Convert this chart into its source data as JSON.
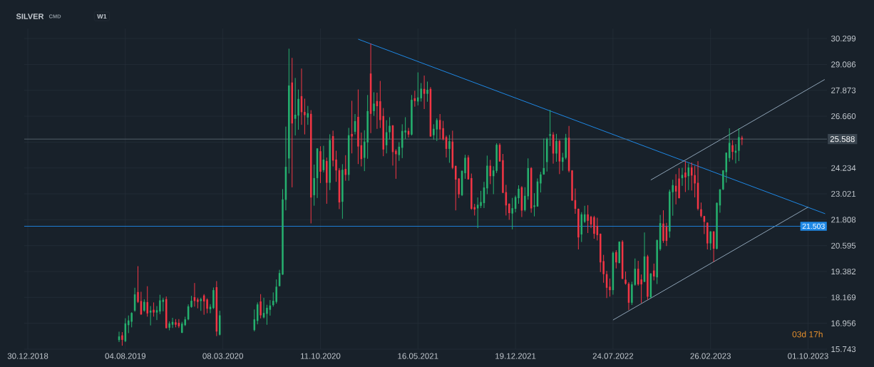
{
  "chart_data": {
    "type": "candlestick",
    "title": "SILVER",
    "annotations": [
      "CMD",
      "W1",
      "03d 17h"
    ],
    "grid": true,
    "colors": [
      "#26b16f",
      "#f23645",
      "#26b16f",
      "#26b16f",
      "#26b16f",
      "#26b16f",
      "#f23645",
      "#f23645",
      "#26b16f",
      "#f23645",
      "#26b16f",
      "#f23645",
      "#26b16f",
      "#26b16f",
      "#26b16f",
      "#f23645",
      "#26b16f",
      "#26b16f",
      "#f23645",
      "#f23645",
      "#26b16f",
      "#26b16f",
      "#26b16f",
      "#26b16f",
      "#f23645",
      "#f23645",
      "#26b16f",
      "#f23645",
      "#f23645",
      "#26b16f",
      "#26b16f",
      "#f23645",
      "#26b16f",
      "#26b16f",
      "#26b16f",
      "#f23645",
      "#26b16f",
      "#26b16f",
      "#26b16f",
      "#26b16f",
      "#26b16f",
      "#26b16f",
      "#26b16f",
      "#26b16f",
      "#26b16f",
      "#f23645",
      "#26b16f",
      "#26b16f",
      "#f23645",
      "#f23645",
      "#26b16f",
      "#f23645",
      "#26b16f",
      "#26b16f",
      "#f23645",
      "#26b16f",
      "#f23645",
      "#26b16f",
      "#f23645",
      "#f23645",
      "#f23645",
      "#26b16f",
      "#f23645",
      "#26b16f",
      "#f23645",
      "#26b16f",
      "#f23645",
      "#f23645",
      "#26b16f",
      "#26b16f",
      "#f23645",
      "#26b16f",
      "#f23645",
      "#f23645",
      "#f23645",
      "#26b16f",
      "#26b16f",
      "#f23645",
      "#f23645",
      "#26b16f",
      "#26b16f",
      "#26b16f",
      "#f23645",
      "#26b16f",
      "#f23645",
      "#26b16f",
      "#26b16f",
      "#f23645",
      "#26b16f",
      "#f23645",
      "#26b16f",
      "#26b16f",
      "#f23645",
      "#f23645",
      "#f23645",
      "#26b16f",
      "#f23645",
      "#f23645",
      "#f23645",
      "#26b16f",
      "#26b16f",
      "#f23645",
      "#f23645",
      "#f23645",
      "#26b16f",
      "#26b16f",
      "#26b16f",
      "#26b16f",
      "#f23645",
      "#26b16f",
      "#26b16f",
      "#f23645",
      "#f23645",
      "#f23645",
      "#f23645",
      "#26b16f",
      "#26b16f",
      "#26b16f",
      "#f23645",
      "#26b16f",
      "#26b16f",
      "#f23645",
      "#26b16f",
      "#26b16f",
      "#26b16f",
      "#26b16f",
      "#26b16f",
      "#26b16f",
      "#f23645",
      "#26b16f",
      "#f23645",
      "#26b16f",
      "#26b16f",
      "#f23645",
      "#f23645",
      "#f23645",
      "#f23645",
      "#26b16f",
      "#26b16f",
      "#f23645",
      "#f23645",
      "#f23645",
      "#f23645",
      "#f23645",
      "#f23645",
      "#f23645",
      "#f23645",
      "#26b16f",
      "#f23645",
      "#26b16f",
      "#f23645",
      "#f23645",
      "#f23645",
      "#26b16f",
      "#26b16f",
      "#f23645",
      "#f23645",
      "#26b16f",
      "#f23645",
      "#26b16f",
      "#f23645",
      "#26b16f",
      "#26b16f",
      "#f23645",
      "#f23645",
      "#26b16f",
      "#26b16f",
      "#f23645",
      "#f23645",
      "#26b16f",
      "#f23645",
      "#26b16f",
      "#f23645",
      "#f23645",
      "#f23645",
      "#f23645",
      "#f23645",
      "#f23645",
      "#26b16f",
      "#f23645",
      "#26b16f",
      "#26b16f",
      "#26b16f",
      "#26b16f",
      "#26b16f",
      "#f23645",
      "#26b16f",
      "#26b16f",
      "#f23645"
    ],
    "xlim": [
      "2018-12-22",
      "2023-11-12"
    ],
    "ylim": [
      15.743,
      30.77
    ],
    "xticks": [
      {
        "value": "2018-12-30",
        "label": "30.12.2018"
      },
      {
        "value": "2019-08-04",
        "label": "04.08.2019"
      },
      {
        "value": "2020-03-08",
        "label": "08.03.2020"
      },
      {
        "value": "2020-10-11",
        "label": "11.10.2020"
      },
      {
        "value": "2021-05-16",
        "label": "16.05.2021"
      },
      {
        "value": "2021-12-19",
        "label": "19.12.2021"
      },
      {
        "value": "2022-07-24",
        "label": "24.07.2022"
      },
      {
        "value": "2023-02-26",
        "label": "26.02.2023"
      },
      {
        "value": "2023-10-01",
        "label": "01.10.2023"
      }
    ],
    "yticks": [
      {
        "value": 15.743,
        "label": "15.743"
      },
      {
        "value": 16.956,
        "label": "16.956"
      },
      {
        "value": 18.169,
        "label": "18.169"
      },
      {
        "value": 19.382,
        "label": "19.382"
      },
      {
        "value": 20.595,
        "label": "20.595"
      },
      {
        "value": 21.808,
        "label": "21.808"
      },
      {
        "value": 23.021,
        "label": "23.021"
      },
      {
        "value": 24.234,
        "label": "24.234"
      },
      {
        "value": 25.447,
        "label": null
      },
      {
        "value": 26.66,
        "label": "26.660"
      },
      {
        "value": 27.873,
        "label": "27.873"
      },
      {
        "value": 29.086,
        "label": "29.086"
      },
      {
        "value": 30.299,
        "label": "30.299"
      }
    ],
    "ref_lines": [
      {
        "axis": "y",
        "value": 21.503,
        "label": "21.503",
        "color": "#1e88e5"
      },
      {
        "axis": "y",
        "value": 25.588,
        "label": "25.588",
        "color": "#5a6672"
      }
    ],
    "series": [
      {
        "type": "line",
        "color": "#1e88e5",
        "x": [
          "2021-01-03",
          "2023-11-08"
        ],
        "values": [
          30.27,
          22.09
        ]
      },
      {
        "type": "line",
        "color": "#8ea3b6",
        "x": [
          "2022-07-24",
          "2023-10-01"
        ],
        "values": [
          17.11,
          22.4
        ]
      },
      {
        "type": "line",
        "color": "#8ea3b6",
        "x": [
          "2022-10-16",
          "2023-11-07"
        ],
        "values": [
          23.67,
          28.38
        ]
      }
    ],
    "x": [
      "2019-07-21",
      "2019-07-28",
      "2019-08-04",
      "2019-08-11",
      "2019-08-18",
      "2019-08-25",
      "2019-09-01",
      "2019-09-08",
      "2019-09-15",
      "2019-09-22",
      "2019-09-29",
      "2019-10-06",
      "2019-10-13",
      "2019-10-20",
      "2019-10-27",
      "2019-11-03",
      "2019-11-10",
      "2019-11-17",
      "2019-11-24",
      "2019-12-01",
      "2019-12-08",
      "2019-12-15",
      "2019-12-22",
      "2019-12-29",
      "2020-01-05",
      "2020-01-12",
      "2020-01-19",
      "2020-01-26",
      "2020-02-02",
      "2020-02-09",
      "2020-02-16",
      "2020-02-23",
      "2020-03-01",
      "2020-05-17",
      "2020-05-24",
      "2020-05-31",
      "2020-06-07",
      "2020-06-14",
      "2020-06-21",
      "2020-06-28",
      "2020-07-05",
      "2020-07-12",
      "2020-07-19",
      "2020-07-26",
      "2020-08-02",
      "2020-08-09",
      "2020-08-16",
      "2020-08-23",
      "2020-08-30",
      "2020-09-06",
      "2020-09-13",
      "2020-09-20",
      "2020-09-27",
      "2020-10-04",
      "2020-10-11",
      "2020-10-18",
      "2020-10-25",
      "2020-11-01",
      "2020-11-08",
      "2020-11-15",
      "2020-11-22",
      "2020-11-29",
      "2020-12-06",
      "2020-12-13",
      "2020-12-20",
      "2020-12-27",
      "2021-01-03",
      "2021-01-10",
      "2021-01-17",
      "2021-01-24",
      "2021-01-31",
      "2021-02-07",
      "2021-02-14",
      "2021-02-21",
      "2021-02-28",
      "2021-03-07",
      "2021-03-14",
      "2021-03-21",
      "2021-03-28",
      "2021-04-04",
      "2021-04-11",
      "2021-04-18",
      "2021-04-25",
      "2021-05-02",
      "2021-05-09",
      "2021-05-16",
      "2021-05-23",
      "2021-05-30",
      "2021-06-06",
      "2021-06-13",
      "2021-06-20",
      "2021-06-27",
      "2021-07-04",
      "2021-07-11",
      "2021-07-18",
      "2021-07-25",
      "2021-08-01",
      "2021-08-08",
      "2021-08-15",
      "2021-08-22",
      "2021-08-29",
      "2021-09-05",
      "2021-09-12",
      "2021-09-19",
      "2021-09-26",
      "2021-10-03",
      "2021-10-10",
      "2021-10-17",
      "2021-10-24",
      "2021-10-31",
      "2021-11-07",
      "2021-11-14",
      "2021-11-21",
      "2021-11-28",
      "2021-12-05",
      "2021-12-12",
      "2021-12-19",
      "2021-12-26",
      "2022-01-02",
      "2022-01-09",
      "2022-01-16",
      "2022-01-23",
      "2022-01-30",
      "2022-02-06",
      "2022-02-13",
      "2022-02-20",
      "2022-02-27",
      "2022-03-06",
      "2022-03-13",
      "2022-03-20",
      "2022-03-27",
      "2022-04-03",
      "2022-04-10",
      "2022-04-17",
      "2022-04-24",
      "2022-05-01",
      "2022-05-08",
      "2022-05-15",
      "2022-05-22",
      "2022-05-29",
      "2022-06-05",
      "2022-06-12",
      "2022-06-19",
      "2022-06-26",
      "2022-07-03",
      "2022-07-10",
      "2022-07-17",
      "2022-07-24",
      "2022-07-31",
      "2022-08-07",
      "2022-08-14",
      "2022-08-21",
      "2022-08-28",
      "2022-09-04",
      "2022-09-11",
      "2022-09-18",
      "2022-09-25",
      "2022-10-02",
      "2022-10-09",
      "2022-10-16",
      "2022-10-23",
      "2022-10-30",
      "2022-11-06",
      "2022-11-13",
      "2022-11-20",
      "2022-11-27",
      "2022-12-04",
      "2022-12-11",
      "2022-12-18",
      "2022-12-25",
      "2023-01-01",
      "2023-01-08",
      "2023-01-15",
      "2023-01-22",
      "2023-01-29",
      "2023-02-05",
      "2023-02-12",
      "2023-02-19",
      "2023-02-26",
      "2023-03-05",
      "2023-03-12",
      "2023-03-19",
      "2023-03-26",
      "2023-04-02",
      "2023-04-09",
      "2023-04-16",
      "2023-04-23",
      "2023-04-30",
      "2023-05-07"
    ],
    "ohlc": [
      [
        16.17,
        16.55,
        16.09,
        16.34
      ],
      [
        16.39,
        16.53,
        15.92,
        16.18
      ],
      [
        16.12,
        17.18,
        16.09,
        16.95
      ],
      [
        16.87,
        17.31,
        16.51,
        17.09
      ],
      [
        17.03,
        17.46,
        16.78,
        17.44
      ],
      [
        17.55,
        18.61,
        17.51,
        18.31
      ],
      [
        18.42,
        19.62,
        17.92,
        17.96
      ],
      [
        18.0,
        18.42,
        17.37,
        17.37
      ],
      [
        17.55,
        18.07,
        17.51,
        17.96
      ],
      [
        17.95,
        18.68,
        17.28,
        17.42
      ],
      [
        17.46,
        17.75,
        16.87,
        17.55
      ],
      [
        17.59,
        17.92,
        17.28,
        17.46
      ],
      [
        17.46,
        17.75,
        17.12,
        17.57
      ],
      [
        17.51,
        18.28,
        17.4,
        18.03
      ],
      [
        17.96,
        18.14,
        17.53,
        18.06
      ],
      [
        18.09,
        18.2,
        16.73,
        16.73
      ],
      [
        16.75,
        17.03,
        16.64,
        16.95
      ],
      [
        16.89,
        17.2,
        16.75,
        17.02
      ],
      [
        17.0,
        17.14,
        16.78,
        16.89
      ],
      [
        16.98,
        17.14,
        16.75,
        16.82
      ],
      [
        16.51,
        17.01,
        16.51,
        16.94
      ],
      [
        16.87,
        17.25,
        16.84,
        17.14
      ],
      [
        17.14,
        17.83,
        17.11,
        17.75
      ],
      [
        17.72,
        18.23,
        17.7,
        18.01
      ],
      [
        18.18,
        18.83,
        17.75,
        18.0
      ],
      [
        18.07,
        18.14,
        17.67,
        17.96
      ],
      [
        18.0,
        18.14,
        17.55,
        18.09
      ],
      [
        18.26,
        18.31,
        17.37,
        17.98
      ],
      [
        18.07,
        18.11,
        17.44,
        17.64
      ],
      [
        17.62,
        17.84,
        17.44,
        17.73
      ],
      [
        17.67,
        18.62,
        17.64,
        18.51
      ],
      [
        18.65,
        18.92,
        16.37,
        16.57
      ],
      [
        16.42,
        17.53,
        16.4,
        17.33
      ],
      [
        16.64,
        17.59,
        16.59,
        17.14
      ],
      [
        17.07,
        17.92,
        16.92,
        17.84
      ],
      [
        17.98,
        18.31,
        17.2,
        17.33
      ],
      [
        17.23,
        18.14,
        17.2,
        17.44
      ],
      [
        17.4,
        17.81,
        16.9,
        17.68
      ],
      [
        17.59,
        18.03,
        17.33,
        17.79
      ],
      [
        17.81,
        18.39,
        17.75,
        18.01
      ],
      [
        17.96,
        19.0,
        17.89,
        18.67
      ],
      [
        18.7,
        19.45,
        18.7,
        19.31
      ],
      [
        19.24,
        23.23,
        19.24,
        22.76
      ],
      [
        22.74,
        26.16,
        22.26,
        24.29
      ],
      [
        24.68,
        29.81,
        23.99,
        28.1
      ],
      [
        28.24,
        29.38,
        23.34,
        26.32
      ],
      [
        26.54,
        28.44,
        25.77,
        26.73
      ],
      [
        26.69,
        27.9,
        26.04,
        27.47
      ],
      [
        27.6,
        28.88,
        26.27,
        26.85
      ],
      [
        26.86,
        27.47,
        25.82,
        26.71
      ],
      [
        26.6,
        27.13,
        26.27,
        26.8
      ],
      [
        26.77,
        26.93,
        21.65,
        22.85
      ],
      [
        22.96,
        24.38,
        22.48,
        23.76
      ],
      [
        23.76,
        25.15,
        22.84,
        25.15
      ],
      [
        25.02,
        25.24,
        23.54,
        24.06
      ],
      [
        24.13,
        25.26,
        24.04,
        24.63
      ],
      [
        24.56,
        24.71,
        22.57,
        23.54
      ],
      [
        23.54,
        25.8,
        23.21,
        25.54
      ],
      [
        25.73,
        25.97,
        24.32,
        24.58
      ],
      [
        24.63,
        25.03,
        23.6,
        24.12
      ],
      [
        24.13,
        24.21,
        22.32,
        22.62
      ],
      [
        22.65,
        24.4,
        21.87,
        24.15
      ],
      [
        24.19,
        24.82,
        23.65,
        23.91
      ],
      [
        23.91,
        26.1,
        23.65,
        25.77
      ],
      [
        25.83,
        27.37,
        24.93,
        25.71
      ],
      [
        25.93,
        26.75,
        25.82,
        26.43
      ],
      [
        26.63,
        27.9,
        24.43,
        25.24
      ],
      [
        25.3,
        25.88,
        24.32,
        24.65
      ],
      [
        24.71,
        25.99,
        24.1,
        25.47
      ],
      [
        25.43,
        27.64,
        24.68,
        26.9
      ],
      [
        28.66,
        30.05,
        25.88,
        26.77
      ],
      [
        26.9,
        27.77,
        26.69,
        27.25
      ],
      [
        27.37,
        27.75,
        26.08,
        27.13
      ],
      [
        27.36,
        28.3,
        26.12,
        26.48
      ],
      [
        26.67,
        27.03,
        24.8,
        25.1
      ],
      [
        25.3,
        26.46,
        24.93,
        25.91
      ],
      [
        25.91,
        26.6,
        25.58,
        26.21
      ],
      [
        26.23,
        26.23,
        24.36,
        24.98
      ],
      [
        25.04,
        25.1,
        23.74,
        24.88
      ],
      [
        24.84,
        25.43,
        24.58,
        25.23
      ],
      [
        25.18,
        26.27,
        24.71,
        25.97
      ],
      [
        25.9,
        26.6,
        25.6,
        25.99
      ],
      [
        25.97,
        26.1,
        25.68,
        25.8
      ],
      [
        25.8,
        27.64,
        25.77,
        27.43
      ],
      [
        27.5,
        27.84,
        27.12,
        27.37
      ],
      [
        27.35,
        28.7,
        27.18,
        27.54
      ],
      [
        27.5,
        28.2,
        27.36,
        27.95
      ],
      [
        27.94,
        28.55,
        27.01,
        27.71
      ],
      [
        27.71,
        28.27,
        27.35,
        27.9
      ],
      [
        27.94,
        28.01,
        25.71,
        25.71
      ],
      [
        25.77,
        26.27,
        25.57,
        26.07
      ],
      [
        26.04,
        26.55,
        25.51,
        26.48
      ],
      [
        26.48,
        26.75,
        25.6,
        26.04
      ],
      [
        26.1,
        26.43,
        25.54,
        25.58
      ],
      [
        25.68,
        25.74,
        24.74,
        25.13
      ],
      [
        25.13,
        25.77,
        24.49,
        25.49
      ],
      [
        25.47,
        25.97,
        24.19,
        24.24
      ],
      [
        24.33,
        24.33,
        22.26,
        23.69
      ],
      [
        23.74,
        23.74,
        22.84,
        23.0
      ],
      [
        22.96,
        24.1,
        22.93,
        24.1
      ],
      [
        23.99,
        24.84,
        23.74,
        24.71
      ],
      [
        24.73,
        24.82,
        23.7,
        23.7
      ],
      [
        23.76,
        23.96,
        22.29,
        22.32
      ],
      [
        22.4,
        22.54,
        22.02,
        22.29
      ],
      [
        22.34,
        22.84,
        21.43,
        22.51
      ],
      [
        22.46,
        23.15,
        22.37,
        22.64
      ],
      [
        22.59,
        23.57,
        22.37,
        23.32
      ],
      [
        23.28,
        24.8,
        23.02,
        24.34
      ],
      [
        24.34,
        24.6,
        23.49,
        23.85
      ],
      [
        23.85,
        24.3,
        23.02,
        24.12
      ],
      [
        24.1,
        25.38,
        24.01,
        25.32
      ],
      [
        25.32,
        25.38,
        24.54,
        24.54
      ],
      [
        24.6,
        24.88,
        23.07,
        23.07
      ],
      [
        23.1,
        23.43,
        22.02,
        22.48
      ],
      [
        22.56,
        22.56,
        21.82,
        22.12
      ],
      [
        22.1,
        22.82,
        21.37,
        22.35
      ],
      [
        22.32,
        22.93,
        22.17,
        22.87
      ],
      [
        22.82,
        23.41,
        22.57,
        23.26
      ],
      [
        23.33,
        23.37,
        21.95,
        22.24
      ],
      [
        22.26,
        23.32,
        22.21,
        22.93
      ],
      [
        22.91,
        24.67,
        22.76,
        24.23
      ],
      [
        24.23,
        24.26,
        22.15,
        22.34
      ],
      [
        22.41,
        23.04,
        21.98,
        22.48
      ],
      [
        22.43,
        23.73,
        22.43,
        23.6
      ],
      [
        23.51,
        24.04,
        23.1,
        23.93
      ],
      [
        23.93,
        25.6,
        23.93,
        24.23
      ],
      [
        24.51,
        25.65,
        24.08,
        25.6
      ],
      [
        25.74,
        26.94,
        25.27,
        25.82
      ],
      [
        25.8,
        25.9,
        24.45,
        24.91
      ],
      [
        24.91,
        25.82,
        24.54,
        25.5
      ],
      [
        25.5,
        25.54,
        23.96,
        24.54
      ],
      [
        24.52,
        24.93,
        24.12,
        24.73
      ],
      [
        24.71,
        25.82,
        24.65,
        25.65
      ],
      [
        25.65,
        26.19,
        24.04,
        24.1
      ],
      [
        24.12,
        24.12,
        22.71,
        22.71
      ],
      [
        22.73,
        23.26,
        22.1,
        22.32
      ],
      [
        22.32,
        22.32,
        20.43,
        20.98
      ],
      [
        21.12,
        22.15,
        20.78,
        22.06
      ],
      [
        21.71,
        22.45,
        21.67,
        22.06
      ],
      [
        22.06,
        22.48,
        21.2,
        21.76
      ],
      [
        21.95,
        21.98,
        21.43,
        21.59
      ],
      [
        21.93,
        21.98,
        20.93,
        21.15
      ],
      [
        21.52,
        21.89,
        20.85,
        21.09
      ],
      [
        21.15,
        21.15,
        19.37,
        19.81
      ],
      [
        19.87,
        20.15,
        18.87,
        19.26
      ],
      [
        19.26,
        19.4,
        18.15,
        18.62
      ],
      [
        18.67,
        19.04,
        18.22,
        18.51
      ],
      [
        18.51,
        20.31,
        18.31,
        20.26
      ],
      [
        20.29,
        20.37,
        19.54,
        19.81
      ],
      [
        19.78,
        20.78,
        19.78,
        20.78
      ],
      [
        20.78,
        20.84,
        19.04,
        19.04
      ],
      [
        19.0,
        19.37,
        18.78,
        18.81
      ],
      [
        18.81,
        18.87,
        17.59,
        17.92
      ],
      [
        17.92,
        18.89,
        17.83,
        18.78
      ],
      [
        18.76,
        19.98,
        18.73,
        19.51
      ],
      [
        19.51,
        19.87,
        18.73,
        18.78
      ],
      [
        19.01,
        19.23,
        17.92,
        18.78
      ],
      [
        18.9,
        21.2,
        18.9,
        20.09
      ],
      [
        20.09,
        20.15,
        18.07,
        18.2
      ],
      [
        18.18,
        19.29,
        18.15,
        19.29
      ],
      [
        19.43,
        19.74,
        18.98,
        19.15
      ],
      [
        19.11,
        20.87,
        18.81,
        20.85
      ],
      [
        20.43,
        22.02,
        20.37,
        21.65
      ],
      [
        21.63,
        22.24,
        20.74,
        20.82
      ],
      [
        21.48,
        21.65,
        20.59,
        20.82
      ],
      [
        21.26,
        23.21,
        20.98,
        23.13
      ],
      [
        23.1,
        23.67,
        22.01,
        23.43
      ],
      [
        23.4,
        23.93,
        22.54,
        23.13
      ],
      [
        23.74,
        24.21,
        22.82,
        22.82
      ],
      [
        23.76,
        24.23,
        23.41,
        23.91
      ],
      [
        24.02,
        24.54,
        23.12,
        23.79
      ],
      [
        23.85,
        24.43,
        23.21,
        24.26
      ],
      [
        24.26,
        24.48,
        23.19,
        23.88
      ],
      [
        23.9,
        24.32,
        22.87,
        23.51
      ],
      [
        23.54,
        24.54,
        22.26,
        22.32
      ],
      [
        22.3,
        22.6,
        21.93,
        21.98
      ],
      [
        21.98,
        21.98,
        21.15,
        21.71
      ],
      [
        21.67,
        21.67,
        20.43,
        20.7
      ],
      [
        20.7,
        21.26,
        20.4,
        21.26
      ],
      [
        21.26,
        21.26,
        19.85,
        20.45
      ],
      [
        20.45,
        22.6,
        20.43,
        22.6
      ],
      [
        22.48,
        23.23,
        22.15,
        23.23
      ],
      [
        23.23,
        24.12,
        23.21,
        24.12
      ],
      [
        24.04,
        24.95,
        23.56,
        24.95
      ],
      [
        24.7,
        26.08,
        24.54,
        25.41
      ],
      [
        25.3,
        25.52,
        24.63,
        24.99
      ],
      [
        24.95,
        25.34,
        24.46,
        25.04
      ],
      [
        25.04,
        26.08,
        24.57,
        25.68
      ],
      [
        25.65,
        25.73,
        25.32,
        25.57
      ]
    ]
  }
}
